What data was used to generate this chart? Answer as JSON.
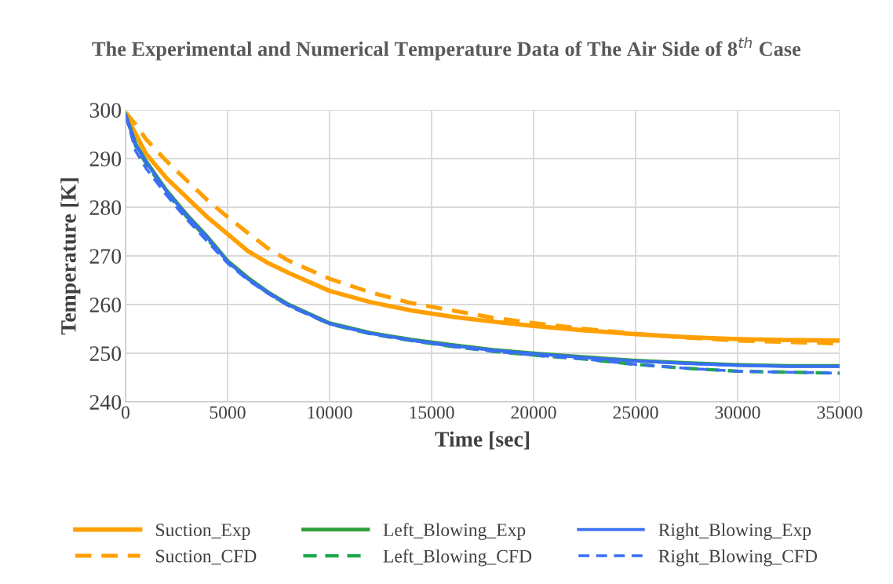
{
  "chart_data": {
    "type": "line",
    "title": "The Experimental and Numerical Temperature Data of The Air Side of 8$^{th}$ Case",
    "xlabel": "Time [sec]",
    "ylabel": "Temperature [K]",
    "x": [
      0,
      500,
      1000,
      2000,
      3000,
      4000,
      5000,
      6000,
      7000,
      8000,
      10000,
      12000,
      14000,
      16000,
      18000,
      20000,
      22500,
      25000,
      27500,
      30000,
      32500,
      35000
    ],
    "xlim": [
      0,
      35000
    ],
    "xticks": [
      0,
      5000,
      10000,
      15000,
      20000,
      25000,
      30000,
      35000
    ],
    "ylim": [
      240,
      300
    ],
    "yticks": [
      240,
      250,
      260,
      270,
      280,
      290,
      300
    ],
    "grid": true,
    "legend": "bottom",
    "series": [
      {
        "name": "Suction_Exp",
        "color": "#ffa000",
        "line_style": "solid",
        "values": [
          299,
          295,
          291,
          286,
          282,
          278,
          274.5,
          271,
          268.5,
          266.5,
          262.8,
          260.5,
          258.8,
          257.5,
          256.5,
          255.6,
          254.7,
          253.9,
          253.3,
          252.9,
          252.7,
          252.6
        ]
      },
      {
        "name": "Suction_CFD",
        "color": "#ffa000",
        "line_style": "dashed",
        "values": [
          299.5,
          297,
          294,
          289.5,
          285.5,
          281.5,
          278,
          274.7,
          271.5,
          269,
          265.3,
          262.5,
          260.3,
          258.8,
          257.3,
          256.2,
          255,
          254,
          253.2,
          252.6,
          252.3,
          252
        ]
      },
      {
        "name": "Left_Blowing_Exp",
        "color": "#2e9e3a",
        "line_style": "solid",
        "values": [
          299,
          293,
          289.5,
          283.5,
          278.5,
          274,
          269,
          265.5,
          262.5,
          260,
          256.2,
          254.2,
          252.8,
          251.7,
          250.7,
          250,
          249.2,
          248.5,
          248,
          247.6,
          247.4,
          247.4
        ]
      },
      {
        "name": "Left_Blowing_CFD",
        "color": "#1ea84a",
        "line_style": "dashed",
        "values": [
          299,
          292.5,
          289,
          283,
          278,
          273.5,
          268.8,
          265.3,
          262.3,
          259.8,
          256,
          254,
          252.6,
          251.4,
          250.4,
          249.6,
          248.8,
          247.7,
          246.9,
          246.3,
          246.1,
          245.9
        ]
      },
      {
        "name": "Right_Blowing_Exp",
        "color": "#3a6ef5",
        "line_style": "solid",
        "values": [
          299,
          292.8,
          289.3,
          283.3,
          278.3,
          273.8,
          268.8,
          265.3,
          262.4,
          259.9,
          256.1,
          254.1,
          252.7,
          251.6,
          250.6,
          249.9,
          249.1,
          248.4,
          247.9,
          247.5,
          247.3,
          247.3
        ]
      },
      {
        "name": "Right_Blowing_CFD",
        "color": "#3a6ef5",
        "line_style": "dashed",
        "values": [
          299,
          291.5,
          288,
          282.5,
          277.5,
          273,
          268.5,
          265,
          262.2,
          259.7,
          256,
          254,
          252.6,
          251.4,
          250.4,
          249.6,
          248.8,
          247.7,
          246.9,
          246.3,
          246.1,
          245.9
        ]
      }
    ]
  }
}
